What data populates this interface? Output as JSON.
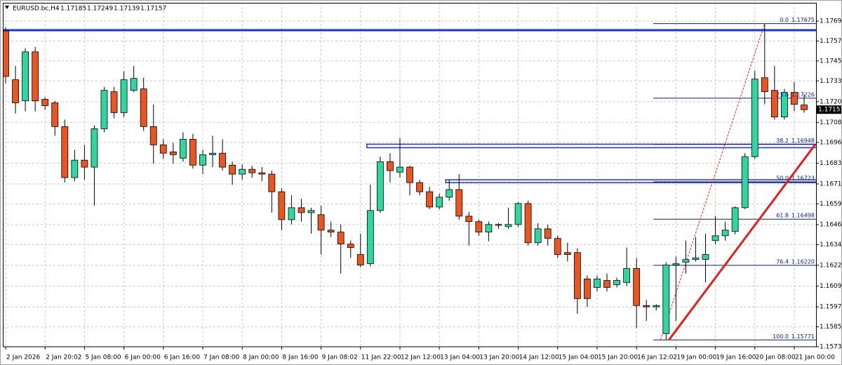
{
  "header": {
    "symbol": "EURUSD.bc,H4",
    "ohlc": [
      1.17185,
      1.17249,
      1.17139,
      1.17157
    ]
  },
  "chart_data": {
    "type": "candlestick",
    "categories": [
      "2 Jan 2026",
      null,
      null,
      null,
      "2 Jan 20:02",
      null,
      null,
      null,
      "5 Jan 08:00",
      null,
      null,
      null,
      "6 Jan 00:00",
      null,
      null,
      null,
      "6 Jan 16:00",
      null,
      null,
      null,
      "7 Jan 08:00",
      null,
      null,
      null,
      "8 Jan 00:00",
      null,
      null,
      null,
      "8 Jan 16:00",
      null,
      null,
      null,
      "9 Jan 08:02",
      null,
      null,
      null,
      "11 Jan 22:00",
      null,
      null,
      null,
      "12 Jan 12:00",
      null,
      null,
      null,
      "13 Jan 04:00",
      null,
      null,
      null,
      "13 Jan 20:00",
      null,
      null,
      null,
      "14 Jan 12:00",
      null,
      null,
      null,
      "15 Jan 04:00",
      null,
      null,
      null,
      "15 Jan 20:00",
      null,
      null,
      null,
      "16 Jan 12:02",
      null,
      null,
      null,
      "19 Jan 00:00",
      null,
      null,
      null,
      "19 Jan 16:00",
      null,
      null,
      null,
      "20 Jan 08:00",
      null,
      null,
      null,
      "21 Jan 00:00",
      null
    ],
    "open": [
      1.17631,
      1.17337,
      1.1721,
      1.17505,
      1.17219,
      1.17198,
      1.17055,
      1.16748,
      1.16853,
      1.16811,
      1.17042,
      1.17265,
      1.17139,
      1.17273,
      1.17282,
      1.17055,
      1.16945,
      1.16903,
      1.16865,
      1.16979,
      1.16823,
      1.16886,
      1.16895,
      1.16823,
      1.16769,
      1.16798,
      1.16777,
      1.16769,
      1.16663,
      1.16495,
      1.16567,
      1.16537,
      1.16525,
      1.16432,
      1.1642,
      1.16348,
      1.16285,
      1.1623,
      1.1655,
      1.16844,
      1.16781,
      1.16811,
      1.16718,
      1.16663,
      1.16571,
      1.1663,
      1.16676,
      1.16516,
      1.16483,
      1.1642,
      1.16461,
      1.16453,
      1.16466,
      1.16592,
      1.16356,
      1.1644,
      1.16382,
      1.16297,
      1.16297,
      1.16138,
      1.16087,
      1.16129,
      1.16104,
      1.16117,
      1.16201,
      1.15978,
      1.1597,
      1.15809,
      1.16222,
      1.16239,
      1.16255,
      1.16255,
      1.16369,
      1.16398,
      1.16424,
      1.16567,
      1.16874,
      1.17349,
      1.17273,
      1.17113,
      1.17261,
      1.17185
    ],
    "high": [
      1.17652,
      1.1742,
      1.17526,
      1.17534,
      1.17231,
      1.1721,
      1.17097,
      1.16916,
      1.16945,
      1.17063,
      1.17294,
      1.17294,
      1.17387,
      1.1742,
      1.17349,
      1.17189,
      1.16979,
      1.16958,
      1.17021,
      1.17012,
      1.16916,
      1.17,
      1.16979,
      1.16844,
      1.16828,
      1.16819,
      1.16811,
      1.1679,
      1.16684,
      1.16642,
      1.16621,
      1.16567,
      1.16579,
      1.16483,
      1.16466,
      1.16369,
      1.16411,
      1.16705,
      1.16874,
      1.16895,
      1.16987,
      1.16819,
      1.16735,
      1.16693,
      1.16651,
      1.16735,
      1.16769,
      1.16541,
      1.16495,
      1.16483,
      1.16474,
      1.16567,
      1.166,
      1.16609,
      1.16474,
      1.16466,
      1.16398,
      1.16356,
      1.16323,
      1.16159,
      1.16159,
      1.16171,
      1.16146,
      1.16327,
      1.16264,
      1.16012,
      1.15986,
      1.16239,
      1.16272,
      1.16369,
      1.1639,
      1.16411,
      1.16516,
      1.16483,
      1.16575,
      1.16895,
      1.17391,
      1.17673,
      1.1742,
      1.17282,
      1.17324,
      1.17249
    ],
    "low": [
      1.17315,
      1.17134,
      1.17147,
      1.17147,
      1.17155,
      1.17,
      1.16718,
      1.16726,
      1.16735,
      1.16579,
      1.17021,
      1.17105,
      1.17113,
      1.17261,
      1.17029,
      1.16832,
      1.16861,
      1.16832,
      1.16844,
      1.16802,
      1.16769,
      1.16811,
      1.1679,
      1.16705,
      1.16735,
      1.16748,
      1.16726,
      1.16537,
      1.16432,
      1.16466,
      1.16483,
      1.16411,
      1.16285,
      1.1639,
      1.16171,
      1.16264,
      1.16209,
      1.16214,
      1.16537,
      1.16718,
      1.16748,
      1.16642,
      1.16642,
      1.16558,
      1.16558,
      1.16609,
      1.16495,
      1.16339,
      1.16398,
      1.16365,
      1.1644,
      1.1644,
      1.16453,
      1.16339,
      1.16339,
      1.16339,
      1.16264,
      1.16243,
      1.15928,
      1.1597,
      1.16062,
      1.16062,
      1.16087,
      1.16096,
      1.15843,
      1.15885,
      1.15949,
      1.15771,
      1.15885,
      1.16171,
      1.16243,
      1.16117,
      1.16348,
      1.16369,
      1.16407,
      1.16558,
      1.16861,
      1.17189,
      1.17097,
      1.17097,
      1.17147,
      1.17139
    ],
    "close": [
      1.17357,
      1.17198,
      1.17505,
      1.1721,
      1.17181,
      1.17055,
      1.16748,
      1.16853,
      1.16811,
      1.17042,
      1.17273,
      1.17139,
      1.17337,
      1.17345,
      1.17055,
      1.16945,
      1.16895,
      1.16886,
      1.16979,
      1.16823,
      1.16886,
      1.16895,
      1.16811,
      1.16769,
      1.16798,
      1.16777,
      1.16769,
      1.16663,
      1.16495,
      1.16567,
      1.16537,
      1.1655,
      1.16432,
      1.1642,
      1.16348,
      1.16327,
      1.16222,
      1.1655,
      1.16844,
      1.1679,
      1.16811,
      1.16718,
      1.16663,
      1.16571,
      1.1663,
      1.16676,
      1.16516,
      1.16483,
      1.1642,
      1.16466,
      1.16466,
      1.16466,
      1.16592,
      1.16356,
      1.1644,
      1.16382,
      1.16285,
      1.16285,
      1.1602,
      1.1602,
      1.16138,
      1.16087,
      1.16129,
      1.16201,
      1.15978,
      1.1597,
      1.15978,
      1.16222,
      1.1623,
      1.16255,
      1.16264,
      1.16285,
      1.16398,
      1.16432,
      1.16567,
      1.16874,
      1.17341,
      1.17265,
      1.17113,
      1.17261,
      1.17189,
      1.17157
    ],
    "up_color": "#2fd6a0",
    "down_color": "#ea5520",
    "ylim": [
      1.1573,
      1.178
    ],
    "yticks": [
      {
        "value": 1.1769,
        "label": "1.17690"
      },
      {
        "value": 1.1757,
        "label": "1.17570"
      },
      {
        "value": 1.1745,
        "label": "1.17450"
      },
      {
        "value": 1.1733,
        "label": "1.17330"
      },
      1.17205,
      {
        "value": 1.1708,
        "label": "1.17080"
      },
      {
        "value": 1.1696,
        "label": "1.16960"
      },
      1.16835,
      {
        "value": 1.1671,
        "label": "1.16710"
      },
      {
        "value": 1.1659,
        "label": "1.16590"
      },
      1.16465,
      1.16345,
      {
        "value": 1.1622,
        "label": "1.16220"
      },
      1.16095,
      {
        "value": 1.1597,
        "label": "1.15970"
      },
      {
        "value": 1.1585,
        "label": "1.15850"
      },
      {
        "value": 1.1573,
        "label": "1.15730"
      }
    ],
    "grid": true,
    "last_price": 1.17157,
    "horizontal_line": 1.17635,
    "rectangles": [
      {
        "start": 37,
        "high": 1.16949,
        "low": 1.16928
      },
      {
        "start": 45,
        "high": 1.16735,
        "low": 1.16718
      }
    ],
    "fibonacci": {
      "start": 66,
      "anchor_low": 67,
      "anchor_high": 77,
      "levels": [
        {
          "level": {
            "value": 0,
            "label": "0.0"
          },
          "price": 1.17675
        },
        {
          "level": 23.6,
          "price": 1.17226
        },
        {
          "level": 38.2,
          "price": 1.16948
        },
        {
          "level": {
            "value": 50,
            "label": "50.0"
          },
          "price": 1.16723
        },
        {
          "level": 61.8,
          "price": 1.16498
        },
        {
          "level": 76.4,
          "price": {
            "value": 1.1622,
            "label": "1.16220"
          }
        },
        {
          "level": {
            "value": 100,
            "label": "100.0"
          },
          "price": 1.15771
        }
      ]
    }
  }
}
